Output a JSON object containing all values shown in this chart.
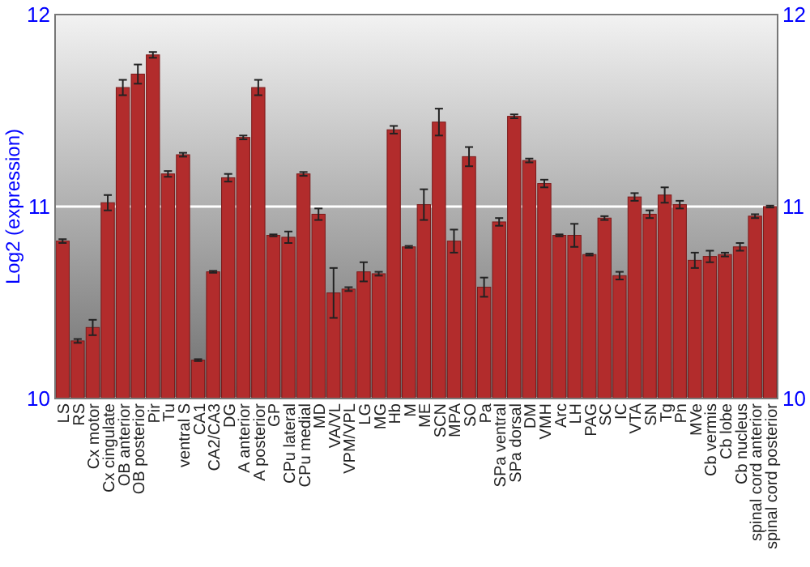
{
  "chart_data": {
    "type": "bar",
    "ylabel": "Log2 (expression)",
    "categories": [
      "LS",
      "RS",
      "Cx motor",
      "Cx cingulate",
      "OB anterior",
      "OB posterior",
      "Pir",
      "Tu",
      "ventral S",
      "CA1",
      "CA2/CA3",
      "DG",
      "A anterior",
      "A posterior",
      "GP",
      "CPu lateral",
      "CPu medial",
      "MD",
      "VA/VL",
      "VPM/VPL",
      "LG",
      "MG",
      "Hb",
      "M",
      "ME",
      "SCN",
      "MPA",
      "SO",
      "Pa",
      "SPa ventral",
      "SPa dorsal",
      "DM",
      "VMH",
      "Arc",
      "LH",
      "PAG",
      "SC",
      "IC",
      "VTA",
      "SN",
      "Tg",
      "Pn",
      "MVe",
      "Cb vermis",
      "Cb lobe",
      "Cb nucleus",
      "spinal cord anterior",
      "spinal cord posterior"
    ],
    "values": [
      10.82,
      10.3,
      10.37,
      11.02,
      11.62,
      11.69,
      11.79,
      11.17,
      11.27,
      10.2,
      10.66,
      11.15,
      11.36,
      11.62,
      10.85,
      10.84,
      11.17,
      10.96,
      10.55,
      10.57,
      10.66,
      10.65,
      11.4,
      10.79,
      11.01,
      11.44,
      10.82,
      11.26,
      10.58,
      10.92,
      11.47,
      11.24,
      11.12,
      10.85,
      10.85,
      10.75,
      10.94,
      10.64,
      11.05,
      10.96,
      11.06,
      11.01,
      10.72,
      10.74,
      10.75,
      10.79,
      10.95,
      11.0
    ],
    "errors": [
      0.01,
      0.01,
      0.04,
      0.04,
      0.04,
      0.05,
      0.015,
      0.015,
      0.01,
      0.005,
      0.005,
      0.02,
      0.01,
      0.04,
      0.005,
      0.03,
      0.01,
      0.03,
      0.13,
      0.01,
      0.05,
      0.01,
      0.02,
      0.005,
      0.08,
      0.07,
      0.06,
      0.05,
      0.05,
      0.02,
      0.01,
      0.01,
      0.02,
      0.005,
      0.06,
      0.005,
      0.01,
      0.02,
      0.02,
      0.02,
      0.04,
      0.02,
      0.04,
      0.03,
      0.01,
      0.02,
      0.01,
      0.005
    ],
    "color": "#b22c2c",
    "ylim": [
      10,
      12
    ],
    "yticks": [
      10,
      11,
      12
    ],
    "y2lim": [
      10,
      12
    ],
    "y2ticks": [
      10,
      11,
      12
    ],
    "grid": "y"
  }
}
